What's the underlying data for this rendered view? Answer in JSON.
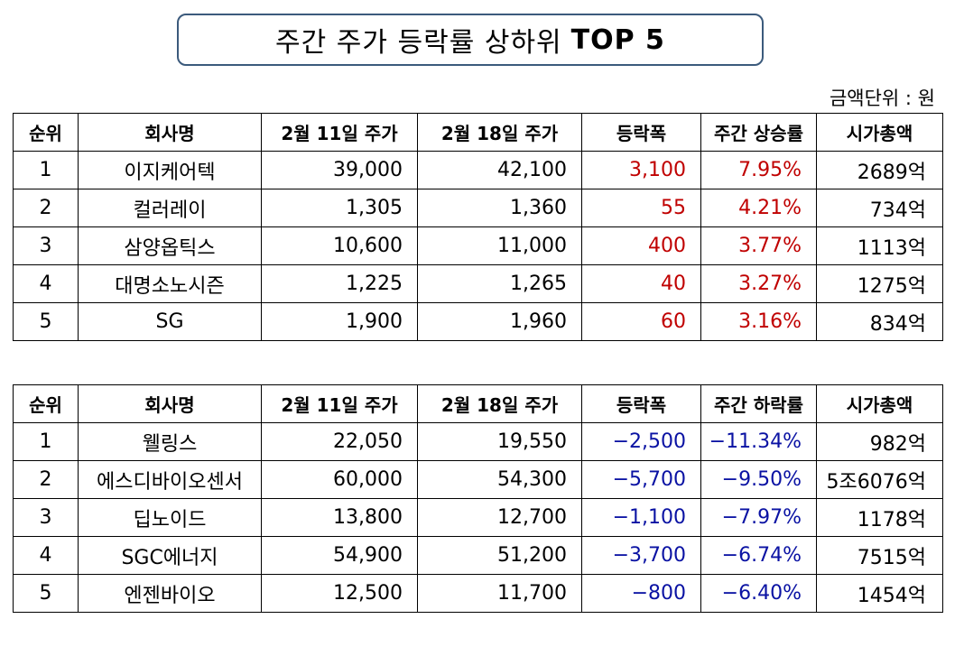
{
  "title": {
    "main": "주간 주가 등락률 상하위",
    "bold": "TOP 5"
  },
  "unit_note": "금액단위 : 원",
  "colors": {
    "up": "#c00000",
    "down": "#0a12a3",
    "title_border": "#3b5a7c"
  },
  "top_table": {
    "headers": [
      "순위",
      "회사명",
      "2월 11일 주가",
      "2월 18일 주가",
      "등락폭",
      "주간 상승률",
      "시가총액"
    ],
    "rows": [
      [
        "1",
        "이지케어텍",
        "39,000",
        "42,100",
        "3,100",
        "7.95%",
        "2689억"
      ],
      [
        "2",
        "컬러레이",
        "1,305",
        "1,360",
        "55",
        "4.21%",
        "734억"
      ],
      [
        "3",
        "삼양옵틱스",
        "10,600",
        "11,000",
        "400",
        "3.77%",
        "1113억"
      ],
      [
        "4",
        "대명소노시즌",
        "1,225",
        "1,265",
        "40",
        "3.27%",
        "1275억"
      ],
      [
        "5",
        "SG",
        "1,900",
        "1,960",
        "60",
        "3.16%",
        "834억"
      ]
    ]
  },
  "bottom_table": {
    "headers": [
      "순위",
      "회사명",
      "2월 11일 주가",
      "2월 18일 주가",
      "등락폭",
      "주간 하락률",
      "시가총액"
    ],
    "rows": [
      [
        "1",
        "웰링스",
        "22,050",
        "19,550",
        "−2,500",
        "−11.34%",
        "982억"
      ],
      [
        "2",
        "에스디바이오센서",
        "60,000",
        "54,300",
        "−5,700",
        "−9.50%",
        "5조6076억"
      ],
      [
        "3",
        "딥노이드",
        "13,800",
        "12,700",
        "−1,100",
        "−7.97%",
        "1178억"
      ],
      [
        "4",
        "SGC에너지",
        "54,900",
        "51,200",
        "−3,700",
        "−6.74%",
        "7515억"
      ],
      [
        "5",
        "엔젠바이오",
        "12,500",
        "11,700",
        "−800",
        "−6.40%",
        "1454억"
      ]
    ]
  }
}
